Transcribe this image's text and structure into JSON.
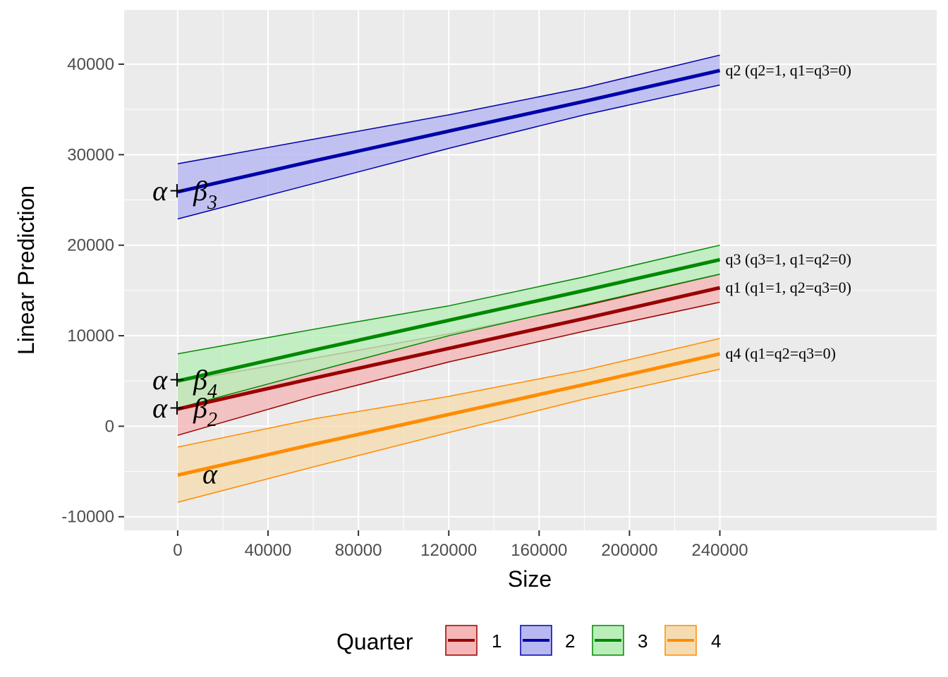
{
  "chart_data": {
    "type": "line",
    "xlabel": "Size",
    "ylabel": "Linear Prediction",
    "xlim": [
      -23700,
      336000
    ],
    "ylim": [
      -11500,
      46000
    ],
    "x_ticks": [
      0,
      40000,
      80000,
      120000,
      160000,
      200000,
      240000
    ],
    "y_ticks": [
      -10000,
      0,
      10000,
      20000,
      30000,
      40000
    ],
    "x_tick_labels": [
      "0",
      "40000",
      "80000",
      "120000",
      "160000",
      "200000",
      "240000"
    ],
    "y_tick_labels": [
      "-10000",
      "0",
      "10000",
      "20000",
      "30000",
      "40000"
    ],
    "grid": true,
    "legend": {
      "title": "Quarter",
      "placement": "bottom"
    },
    "x": [
      0,
      60000,
      120000,
      180000,
      240000
    ],
    "series": [
      {
        "name": "1",
        "color": "#990000",
        "fill": "#f4b6b6",
        "values": [
          1900,
          5300,
          8600,
          11900,
          15300
        ],
        "lower": [
          -1000,
          3300,
          7100,
          10500,
          13700
        ],
        "upper": [
          4900,
          7500,
          10200,
          13300,
          16800
        ],
        "end_label": "q1 (q1=1, q2=q3=0)"
      },
      {
        "name": "2",
        "color": "#0000aa",
        "fill": "#b7b7f2",
        "values": [
          25900,
          29300,
          32600,
          35900,
          39300
        ],
        "lower": [
          22900,
          26800,
          30700,
          34400,
          37700
        ],
        "upper": [
          29000,
          31700,
          34400,
          37400,
          41000
        ],
        "end_label": "q2 (q2=1, q1=q3=0)"
      },
      {
        "name": "3",
        "color": "#008800",
        "fill": "#b9eeb9",
        "values": [
          5000,
          8400,
          11700,
          15000,
          18400
        ],
        "lower": [
          2000,
          6000,
          10000,
          13400,
          16800
        ],
        "upper": [
          8000,
          10700,
          13300,
          16500,
          20000
        ],
        "end_label": "q3 (q3=1, q1=q2=0)"
      },
      {
        "name": "4",
        "color": "#ff8c00",
        "fill": "#f5dcb0",
        "values": [
          -5400,
          -2000,
          1300,
          4600,
          8000
        ],
        "lower": [
          -8400,
          -4500,
          -700,
          3000,
          6300
        ],
        "upper": [
          -2300,
          800,
          3300,
          6200,
          9700
        ],
        "end_label": "q4 (q1=q2=q3=0)"
      }
    ],
    "left_annotations": [
      {
        "main": "α+ β",
        "sub": "3",
        "y": 25900
      },
      {
        "main": "α+ β",
        "sub": "4",
        "y": 5000
      },
      {
        "main": "α+ β",
        "sub": "2",
        "y": 1900
      },
      {
        "main": "α",
        "sub": "",
        "y": -5400
      }
    ]
  }
}
